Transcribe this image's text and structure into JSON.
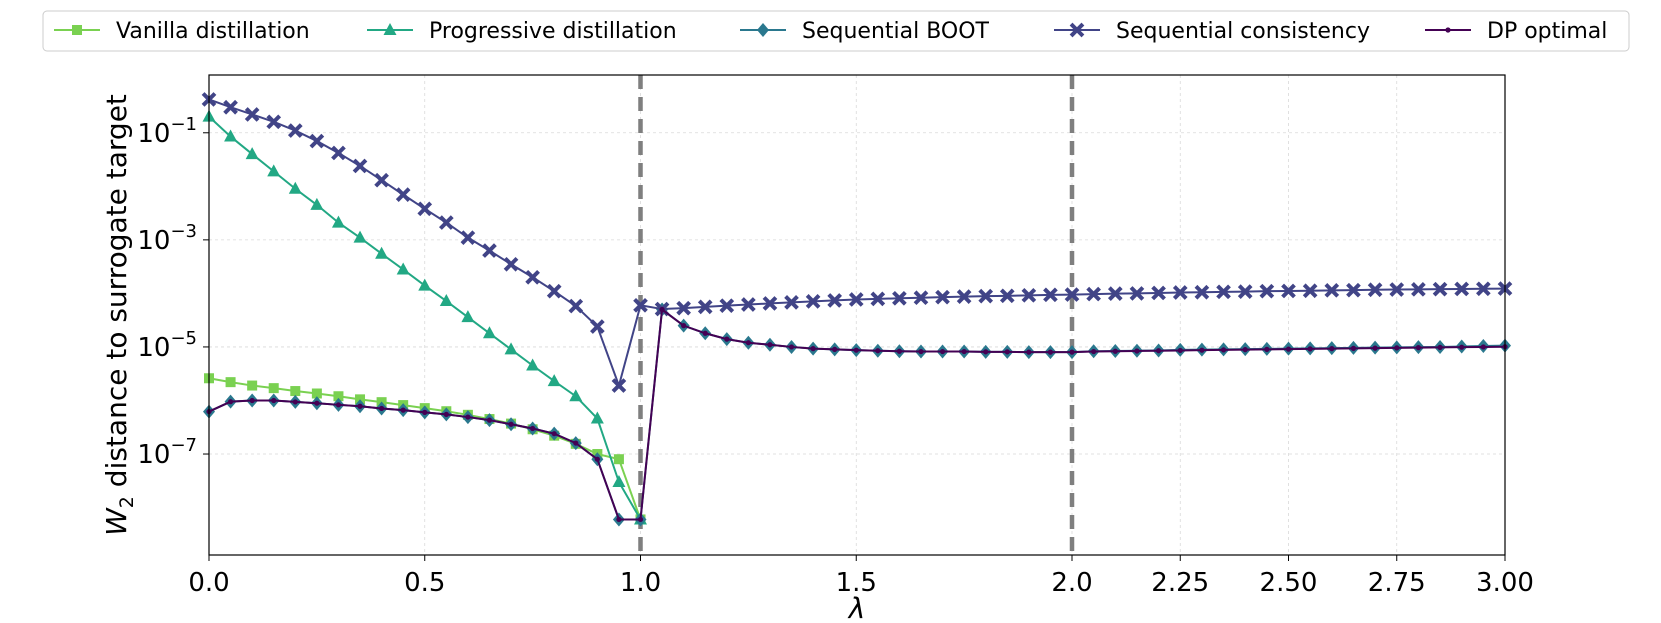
{
  "chart_data": {
    "type": "line",
    "title": "",
    "xlabel": "λ",
    "ylabel_var": "W",
    "ylabel_sub": "2",
    "ylabel_rest": " distance to surrogate target",
    "yscale": "log",
    "ylim": [
      1.3e-09,
      1.2
    ],
    "y_ticks": [
      {
        "value": 1e-07,
        "base": "10",
        "exp": "−7"
      },
      {
        "value": 1e-05,
        "base": "10",
        "exp": "−5"
      },
      {
        "value": 0.001,
        "base": "10",
        "exp": "−3"
      },
      {
        "value": 0.1,
        "base": "10",
        "exp": "−1"
      }
    ],
    "x_axis_note": "piecewise: 0–2 linear, 2–3 expanded",
    "x_ticks": [
      {
        "value": 0.0,
        "label": "0.0"
      },
      {
        "value": 0.5,
        "label": "0.5"
      },
      {
        "value": 1.0,
        "label": "1.0"
      },
      {
        "value": 1.5,
        "label": "1.5"
      },
      {
        "value": 2.0,
        "label": "2.0"
      },
      {
        "value": 2.25,
        "label": "2.25"
      },
      {
        "value": 2.5,
        "label": "2.50"
      },
      {
        "value": 2.75,
        "label": "2.75"
      },
      {
        "value": 3.0,
        "label": "3.00"
      }
    ],
    "vlines": [
      1.0,
      2.0
    ],
    "grid": true,
    "legend_position": "top",
    "series": [
      {
        "name": "Vanilla distillation",
        "color": "#7ad151",
        "marker": "square",
        "x": [
          0.0,
          0.05,
          0.1,
          0.15,
          0.2,
          0.25,
          0.3,
          0.35,
          0.4,
          0.45,
          0.5,
          0.55,
          0.6,
          0.65,
          0.7,
          0.75,
          0.8,
          0.85,
          0.9,
          0.95,
          1.0
        ],
        "y": [
          2.6e-06,
          2.2e-06,
          1.9e-06,
          1.7e-06,
          1.5e-06,
          1.35e-06,
          1.2e-06,
          1.05e-06,
          9.3e-07,
          8.2e-07,
          7.2e-07,
          6.3e-07,
          5.4e-07,
          4.5e-07,
          3.7e-07,
          2.9e-07,
          2.2e-07,
          1.55e-07,
          1e-07,
          8e-08,
          6e-09
        ]
      },
      {
        "name": "Progressive distillation",
        "color": "#22a884",
        "marker": "triangle",
        "x": [
          0.0,
          0.05,
          0.1,
          0.15,
          0.2,
          0.25,
          0.3,
          0.35,
          0.4,
          0.45,
          0.5,
          0.55,
          0.6,
          0.65,
          0.7,
          0.75,
          0.8,
          0.85,
          0.9,
          0.95,
          1.0
        ],
        "y": [
          0.2,
          0.085,
          0.04,
          0.019,
          0.009,
          0.0045,
          0.0021,
          0.0011,
          0.00055,
          0.00028,
          0.00014,
          7.2e-05,
          3.6e-05,
          1.8e-05,
          9e-06,
          4.5e-06,
          2.3e-06,
          1.2e-06,
          4.6e-07,
          3e-08,
          6e-09
        ]
      },
      {
        "name": "Sequential BOOT",
        "color": "#2a788e",
        "marker": "diamond",
        "x": [
          0.0,
          0.05,
          0.1,
          0.15,
          0.2,
          0.25,
          0.3,
          0.35,
          0.4,
          0.45,
          0.5,
          0.55,
          0.6,
          0.65,
          0.7,
          0.75,
          0.8,
          0.85,
          0.9,
          0.95,
          1.0,
          1.05,
          1.1,
          1.15,
          1.2,
          1.25,
          1.3,
          1.35,
          1.4,
          1.45,
          1.5,
          1.55,
          1.6,
          1.65,
          1.7,
          1.75,
          1.8,
          1.85,
          1.9,
          1.95,
          2.0,
          2.05,
          2.1,
          2.15,
          2.2,
          2.25,
          2.3,
          2.35,
          2.4,
          2.45,
          2.5,
          2.55,
          2.6,
          2.65,
          2.7,
          2.75,
          2.8,
          2.85,
          2.9,
          2.95,
          3.0
        ],
        "y": [
          6.2e-07,
          9.5e-07,
          1e-06,
          1e-06,
          9.4e-07,
          8.9e-07,
          8.3e-07,
          7.8e-07,
          7.1e-07,
          6.6e-07,
          6e-07,
          5.5e-07,
          4.9e-07,
          4.3e-07,
          3.6e-07,
          3e-07,
          2.4e-07,
          1.6e-07,
          8e-08,
          6e-09,
          6e-09,
          5e-05,
          2.5e-05,
          1.8e-05,
          1.4e-05,
          1.2e-05,
          1.1e-05,
          1e-05,
          9.3e-06,
          9e-06,
          8.7e-06,
          8.5e-06,
          8.3e-06,
          8.2e-06,
          8.2e-06,
          8.2e-06,
          8.1e-06,
          8.1e-06,
          8e-06,
          8e-06,
          8e-06,
          8.3e-06,
          8.4e-06,
          8.5e-06,
          8.6e-06,
          8.8e-06,
          8.9e-06,
          9e-06,
          9.1e-06,
          9.2e-06,
          9.3e-06,
          9.4e-06,
          9.5e-06,
          9.6e-06,
          9.7e-06,
          9.8e-06,
          9.9e-06,
          1e-05,
          1.02e-05,
          1.04e-05,
          1.06e-05
        ]
      },
      {
        "name": "Sequential consistency",
        "color": "#414487",
        "marker": "x",
        "x": [
          0.0,
          0.05,
          0.1,
          0.15,
          0.2,
          0.25,
          0.3,
          0.35,
          0.4,
          0.45,
          0.5,
          0.55,
          0.6,
          0.65,
          0.7,
          0.75,
          0.8,
          0.85,
          0.9,
          0.95,
          1.0,
          1.05,
          1.1,
          1.15,
          1.2,
          1.25,
          1.3,
          1.35,
          1.4,
          1.45,
          1.5,
          1.55,
          1.6,
          1.65,
          1.7,
          1.75,
          1.8,
          1.85,
          1.9,
          1.95,
          2.0,
          2.05,
          2.1,
          2.15,
          2.2,
          2.25,
          2.3,
          2.35,
          2.4,
          2.45,
          2.5,
          2.55,
          2.6,
          2.65,
          2.7,
          2.75,
          2.8,
          2.85,
          2.9,
          2.95,
          3.0
        ],
        "y": [
          0.42,
          0.3,
          0.22,
          0.16,
          0.11,
          0.07,
          0.042,
          0.024,
          0.013,
          0.007,
          0.0038,
          0.0021,
          0.0011,
          0.00063,
          0.00035,
          0.0002,
          0.00011,
          5.8e-05,
          2.4e-05,
          1.9e-06,
          6e-05,
          5.1e-05,
          5.3e-05,
          5.6e-05,
          5.9e-05,
          6.2e-05,
          6.5e-05,
          6.8e-05,
          7.1e-05,
          7.4e-05,
          7.7e-05,
          7.9e-05,
          8.1e-05,
          8.3e-05,
          8.5e-05,
          8.7e-05,
          8.9e-05,
          9e-05,
          9.2e-05,
          9.4e-05,
          9.5e-05,
          9.7e-05,
          9.9e-05,
          0.0001,
          0.000102,
          0.000104,
          0.000105,
          0.000107,
          0.000108,
          0.00011,
          0.000111,
          0.000112,
          0.000114,
          0.000115,
          0.000117,
          0.000118,
          0.000119,
          0.00012,
          0.000121,
          0.000122,
          0.000123
        ]
      },
      {
        "name": "DP optimal",
        "color": "#440154",
        "marker": "dot",
        "x": [
          0.0,
          0.05,
          0.1,
          0.15,
          0.2,
          0.25,
          0.3,
          0.35,
          0.4,
          0.45,
          0.5,
          0.55,
          0.6,
          0.65,
          0.7,
          0.75,
          0.8,
          0.85,
          0.9,
          0.95,
          1.0,
          1.05,
          1.1,
          1.15,
          1.2,
          1.25,
          1.3,
          1.35,
          1.4,
          1.45,
          1.5,
          1.55,
          1.6,
          1.65,
          1.7,
          1.75,
          1.8,
          1.85,
          1.9,
          1.95,
          2.0,
          2.05,
          2.1,
          2.15,
          2.2,
          2.25,
          2.3,
          2.35,
          2.4,
          2.45,
          2.5,
          2.55,
          2.6,
          2.65,
          2.7,
          2.75,
          2.8,
          2.85,
          2.9,
          2.95,
          3.0
        ],
        "y": [
          6.2e-07,
          9.5e-07,
          1e-06,
          1e-06,
          9.4e-07,
          8.9e-07,
          8.3e-07,
          7.8e-07,
          7.1e-07,
          6.6e-07,
          6e-07,
          5.5e-07,
          4.9e-07,
          4.3e-07,
          3.6e-07,
          3e-07,
          2.4e-07,
          1.6e-07,
          8e-08,
          6e-09,
          6e-09,
          5e-05,
          2.5e-05,
          1.8e-05,
          1.4e-05,
          1.2e-05,
          1.1e-05,
          1e-05,
          9.3e-06,
          9e-06,
          8.7e-06,
          8.5e-06,
          8.3e-06,
          8.2e-06,
          8.2e-06,
          8.2e-06,
          8.1e-06,
          8.1e-06,
          8e-06,
          8e-06,
          8e-06,
          8.2e-06,
          8.3e-06,
          8.4e-06,
          8.5e-06,
          8.6e-06,
          8.7e-06,
          8.8e-06,
          8.9e-06,
          9e-06,
          9.1e-06,
          9.2e-06,
          9.3e-06,
          9.4e-06,
          9.5e-06,
          9.6e-06,
          9.7e-06,
          9.8e-06,
          9.9e-06,
          1e-05,
          1.01e-05
        ]
      }
    ]
  }
}
